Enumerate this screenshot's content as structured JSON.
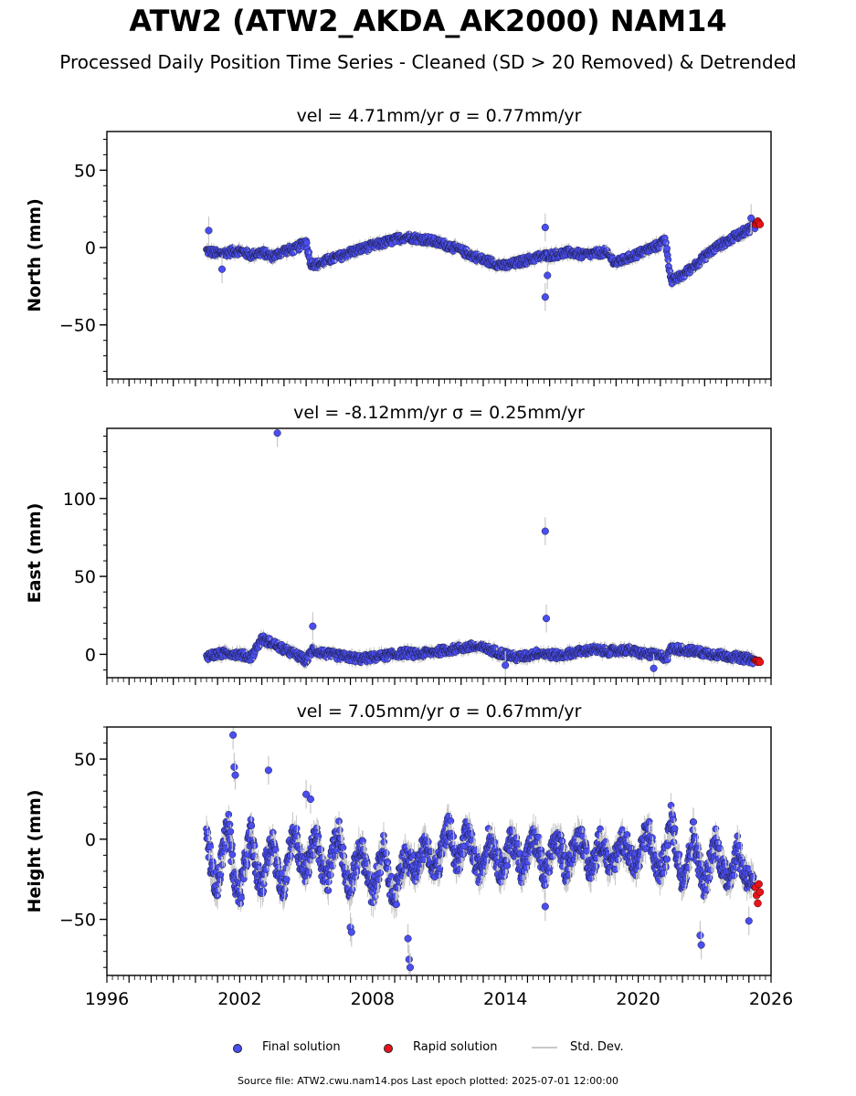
{
  "title": "ATW2 (ATW2_AKDA_AK2000) NAM14",
  "subtitle": "Processed Daily Position Time Series - Cleaned (SD > 20 Removed) & Detrended",
  "legend": {
    "final_label": "Final solution",
    "rapid_label": "Rapid solution",
    "std_label": "Std. Dev."
  },
  "footer": {
    "source_text": "Source file: ATW2.cwu.nam14.pos  Last epoch plotted: 2025-07-01 12:00:00"
  },
  "colors": {
    "final": "#4a4ef0",
    "rapid": "#e8141a",
    "std": "#c8c8c8"
  },
  "chart_data": [
    {
      "type": "scatter",
      "panel_title": "vel = 4.71mm/yr   σ = 0.77mm/yr",
      "ylabel": "North (mm)",
      "xlim": [
        1996,
        2026
      ],
      "ylim": [
        -85,
        75
      ],
      "yticks": [
        -50,
        0,
        50
      ],
      "xticks": [
        1996,
        2002,
        2008,
        2014,
        2020,
        2026
      ],
      "series": [
        {
          "kind": "final",
          "x": [
            2000.5,
            2001.0,
            2001.5,
            2002.0,
            2002.5,
            2003.0,
            2003.5,
            2004.0,
            2004.5,
            2005.0,
            2005.2,
            2005.5,
            2006.0,
            2006.5,
            2007.0,
            2007.5,
            2008.0,
            2008.5,
            2009.0,
            2009.5,
            2010.0,
            2010.5,
            2011.0,
            2011.5,
            2012.0,
            2012.5,
            2013.0,
            2013.5,
            2014.0,
            2014.5,
            2015.0,
            2015.5,
            2016.0,
            2016.5,
            2017.0,
            2017.5,
            2018.0,
            2018.5,
            2019.0,
            2019.5,
            2020.0,
            2020.5,
            2021.0,
            2021.2,
            2021.5,
            2022.0,
            2022.5,
            2023.0,
            2023.5,
            2024.0,
            2024.5,
            2025.0,
            2025.3
          ],
          "y": [
            -2,
            -4,
            -3,
            -2,
            -5,
            -3,
            -6,
            -2,
            -1,
            4,
            -10,
            -11,
            -8,
            -6,
            -3,
            -1,
            1,
            3,
            5,
            7,
            6,
            5,
            3,
            1,
            -2,
            -5,
            -8,
            -10,
            -12,
            -10,
            -8,
            -6,
            -5,
            -4,
            -3,
            -5,
            -4,
            -3,
            -10,
            -7,
            -4,
            -1,
            2,
            7,
            -22,
            -18,
            -12,
            -6,
            0,
            4,
            8,
            12,
            14
          ],
          "x_outliers": [
            2000.6,
            2001.2,
            2015.8,
            2015.8,
            2015.9,
            2025.1
          ],
          "y_outliers": [
            11,
            -14,
            -32,
            13,
            -18,
            19
          ]
        },
        {
          "kind": "rapid",
          "x": [
            2025.3,
            2025.35,
            2025.4,
            2025.45,
            2025.5
          ],
          "y": [
            15,
            16,
            17,
            16,
            15
          ]
        }
      ]
    },
    {
      "type": "scatter",
      "panel_title": "vel = -8.12mm/yr   σ = 0.25mm/yr",
      "ylabel": "East (mm)",
      "xlim": [
        1996,
        2026
      ],
      "ylim": [
        -15,
        145
      ],
      "yticks": [
        0,
        50,
        100
      ],
      "xticks": [
        1996,
        2002,
        2008,
        2014,
        2020,
        2026
      ],
      "series": [
        {
          "kind": "final",
          "x": [
            2000.5,
            2001.0,
            2001.5,
            2002.0,
            2002.5,
            2003.0,
            2003.5,
            2004.0,
            2004.5,
            2005.0,
            2005.3,
            2005.5,
            2006.0,
            2006.5,
            2007.0,
            2007.5,
            2008.0,
            2008.5,
            2009.0,
            2009.5,
            2010.0,
            2010.5,
            2011.0,
            2011.5,
            2012.0,
            2012.5,
            2013.0,
            2013.5,
            2014.0,
            2014.5,
            2015.0,
            2015.5,
            2016.0,
            2016.5,
            2017.0,
            2017.5,
            2018.0,
            2018.5,
            2019.0,
            2019.5,
            2020.0,
            2020.5,
            2021.0,
            2021.3,
            2021.5,
            2022.0,
            2022.5,
            2023.0,
            2023.5,
            2024.0,
            2024.5,
            2025.0,
            2025.3
          ],
          "y": [
            -1,
            0,
            1,
            0,
            -2,
            10,
            7,
            3,
            0,
            -4,
            3,
            2,
            0,
            -1,
            -2,
            -3,
            -2,
            -1,
            0,
            1,
            0,
            1,
            2,
            3,
            4,
            5,
            4,
            2,
            0,
            -2,
            -1,
            1,
            0,
            -1,
            1,
            2,
            3,
            2,
            2,
            3,
            1,
            0,
            -1,
            -2,
            4,
            3,
            2,
            1,
            0,
            -1,
            -2,
            -3,
            -4
          ],
          "x_outliers": [
            2003.7,
            2005.3,
            2015.8,
            2015.85,
            2014.0,
            2020.7
          ],
          "y_outliers": [
            142,
            18,
            79,
            23,
            -7,
            -9
          ]
        },
        {
          "kind": "rapid",
          "x": [
            2025.3,
            2025.35,
            2025.4,
            2025.45,
            2025.5
          ],
          "y": [
            -4,
            -4,
            -5,
            -4,
            -5
          ]
        }
      ]
    },
    {
      "type": "scatter",
      "panel_title": "vel = 7.05mm/yr   σ = 0.67mm/yr",
      "ylabel": "Height (mm)",
      "xlim": [
        1996,
        2026
      ],
      "ylim": [
        -85,
        70
      ],
      "yticks": [
        -50,
        0,
        50
      ],
      "xticks": [
        1996,
        2002,
        2008,
        2014,
        2020,
        2026
      ],
      "xticklabels": [
        "1996",
        "2002",
        "2008",
        "2014",
        "2020",
        "2026"
      ],
      "series": [
        {
          "kind": "final",
          "x": [
            2000.5,
            2000.75,
            2001.0,
            2001.25,
            2001.5,
            2001.75,
            2002.0,
            2002.25,
            2002.5,
            2002.75,
            2003.0,
            2003.25,
            2003.5,
            2003.75,
            2004.0,
            2004.25,
            2004.5,
            2004.75,
            2005.0,
            2005.25,
            2005.5,
            2005.75,
            2006.0,
            2006.25,
            2006.5,
            2006.75,
            2007.0,
            2007.25,
            2007.5,
            2007.75,
            2008.0,
            2008.25,
            2008.5,
            2008.75,
            2009.0,
            2009.25,
            2009.5,
            2009.75,
            2010.0,
            2010.25,
            2010.5,
            2010.75,
            2011.0,
            2011.25,
            2011.5,
            2011.75,
            2012.0,
            2012.25,
            2012.5,
            2012.75,
            2013.0,
            2013.25,
            2013.5,
            2013.75,
            2014.0,
            2014.25,
            2014.5,
            2014.75,
            2015.0,
            2015.25,
            2015.5,
            2015.75,
            2016.0,
            2016.25,
            2016.5,
            2016.75,
            2017.0,
            2017.25,
            2017.5,
            2017.75,
            2018.0,
            2018.25,
            2018.5,
            2018.75,
            2019.0,
            2019.25,
            2019.5,
            2019.75,
            2020.0,
            2020.25,
            2020.5,
            2020.75,
            2021.0,
            2021.25,
            2021.5,
            2021.75,
            2022.0,
            2022.25,
            2022.5,
            2022.75,
            2023.0,
            2023.25,
            2023.5,
            2023.75,
            2024.0,
            2024.25,
            2024.5,
            2024.75,
            2025.0,
            2025.25
          ],
          "y": [
            5,
            -20,
            -30,
            -5,
            10,
            -25,
            -35,
            -15,
            5,
            -20,
            -30,
            -10,
            0,
            -25,
            -30,
            -5,
            5,
            -15,
            -20,
            -5,
            0,
            -20,
            -25,
            -5,
            5,
            -20,
            -30,
            -15,
            -5,
            -20,
            -35,
            -20,
            -5,
            -25,
            -40,
            -20,
            -10,
            -15,
            -20,
            -5,
            -5,
            -20,
            -15,
            0,
            10,
            -15,
            -10,
            5,
            -5,
            -20,
            -15,
            0,
            -5,
            -20,
            -15,
            0,
            -5,
            -20,
            -10,
            0,
            -5,
            -25,
            -15,
            0,
            -5,
            -20,
            -10,
            0,
            0,
            -20,
            -15,
            0,
            -5,
            -20,
            -10,
            0,
            -5,
            -15,
            -15,
            0,
            5,
            -15,
            -20,
            -10,
            15,
            -10,
            -25,
            -15,
            5,
            -15,
            -30,
            -15,
            0,
            -15,
            -25,
            -20,
            -5,
            -20,
            -25,
            -30
          ],
          "x_outliers": [
            2001.7,
            2001.75,
            2001.8,
            2003.3,
            2005.2,
            2005.0,
            2007.0,
            2007.05,
            2009.6,
            2009.65,
            2009.7,
            2015.8,
            2022.8,
            2022.85,
            2025.0
          ],
          "y_outliers": [
            65,
            45,
            40,
            43,
            25,
            28,
            -55,
            -58,
            -62,
            -75,
            -80,
            -42,
            -60,
            -66,
            -51
          ]
        },
        {
          "kind": "rapid",
          "x": [
            2025.3,
            2025.35,
            2025.4,
            2025.45,
            2025.5
          ],
          "y": [
            -30,
            -35,
            -40,
            -28,
            -33
          ]
        }
      ]
    }
  ]
}
